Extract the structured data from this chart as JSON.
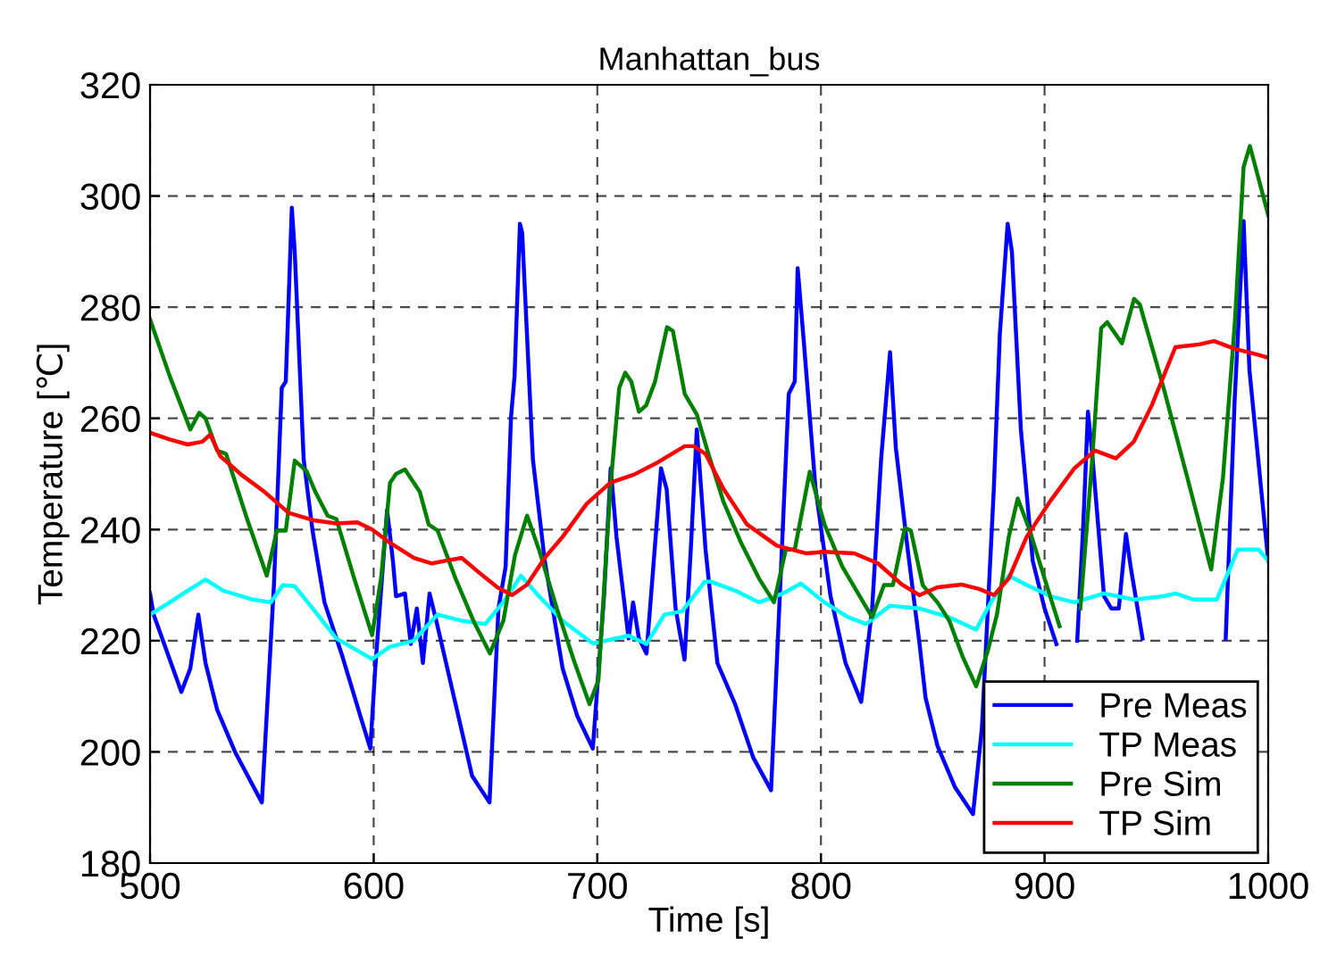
{
  "chart_data": {
    "type": "line",
    "title": "Manhattan_bus",
    "xlabel": "Time [s]",
    "ylabel": "Temperature [℃]",
    "xlim": [
      500,
      1000
    ],
    "ylim": [
      180,
      320
    ],
    "xticks": [
      500,
      600,
      700,
      800,
      900,
      1000
    ],
    "yticks": [
      180,
      200,
      220,
      240,
      260,
      280,
      300,
      320
    ],
    "grid": true,
    "legend": "bottom right",
    "line_style": "solid",
    "marker": "none",
    "series": [
      {
        "name": "Pre Meas",
        "color": "#0000ff",
        "x": [
          500,
          501.6,
          514,
          518,
          521.6,
          524.8,
          530,
          538,
          550,
          555.4,
          558.9,
          560.7,
          563.4,
          564.7,
          568.7,
          572.7,
          578,
          586,
          594,
          598.5,
          600.7,
          606,
          608.6,
          610,
          614,
          616.6,
          619.3,
          622,
          625,
          628,
          636,
          644,
          651.8,
          655.8,
          659,
          661.4,
          663,
          665.4,
          666.4,
          671.2,
          676.5,
          684.5,
          691,
          698,
          703,
          706,
          708.6,
          714,
          716,
          718.6,
          722,
          728.5,
          731,
          735,
          739,
          741.8,
          744.5,
          748.4,
          753.7,
          761.7,
          769.7,
          777.7,
          781.6,
          785.6,
          788.3,
          789.6,
          792.3,
          797.6,
          804.3,
          811,
          818,
          822.9,
          826.9,
          830.9,
          833.5,
          838.8,
          844.1,
          846.8,
          852.1,
          860,
          868,
          872,
          877.3,
          880,
          883.5,
          885.4,
          889.4,
          894.7,
          900,
          905.3,
          910,
          914.6,
          917.3,
          919.4,
          921.3,
          926.6,
          929.8,
          933.2,
          936.4,
          938.5,
          943.8,
          962,
          981,
          985,
          989,
          991.6,
          1000
        ],
        "values": [
          228.5,
          224.7,
          210.8,
          215,
          224.7,
          216,
          207.6,
          200,
          190.9,
          230,
          265.5,
          266.6,
          297.9,
          290,
          252.6,
          239.7,
          226.9,
          217.2,
          206.5,
          200.6,
          215,
          243.5,
          234.4,
          228,
          228.5,
          219.4,
          225.8,
          216,
          228.5,
          223.6,
          209.7,
          195.7,
          190.9,
          225.8,
          233.3,
          260.1,
          267.6,
          295,
          293.4,
          252.6,
          234.4,
          215,
          206.5,
          200.6,
          228,
          251,
          238.6,
          220.4,
          226.9,
          220.4,
          217.7,
          251,
          247.3,
          225.8,
          216.6,
          236.4,
          258,
          236.4,
          216,
          208.5,
          199,
          193.1,
          228,
          264.4,
          266.6,
          287,
          274,
          247.3,
          228,
          216,
          209,
          225.8,
          252.6,
          271.9,
          254.7,
          236.4,
          219.4,
          209.7,
          201.1,
          193.6,
          188.8,
          204.4,
          247.3,
          275.2,
          295,
          290,
          258,
          234.4,
          225.8,
          219.4,
          null,
          220,
          240.8,
          261.2,
          253.6,
          228,
          225.8,
          225.8,
          239.2,
          233.3,
          220.4,
          null,
          220.4,
          263.3,
          295.5,
          268.7,
          234.4
        ]
      },
      {
        "name": "TP Meas",
        "color": "#00ffff",
        "x": [
          500,
          508.8,
          516.8,
          524.8,
          532.8,
          546,
          554,
          559.4,
          564.7,
          572.7,
          583.3,
          599.3,
          607.3,
          617.9,
          628.6,
          639.3,
          649.9,
          657.9,
          665.9,
          673.9,
          684.5,
          698,
          714,
          722,
          730,
          738,
          748,
          751,
          761.7,
          772.3,
          783,
          791,
          801.6,
          812.2,
          820.2,
          830.9,
          844,
          857.4,
          869.4,
          876,
          884,
          892,
          902.7,
          913.3,
          926.6,
          939.9,
          953.2,
          958.5,
          966.5,
          977,
          986.4,
          995.7,
          1000
        ],
        "values": [
          224.7,
          226.9,
          229,
          231,
          229,
          227.4,
          226.9,
          230,
          229.8,
          225.8,
          220.4,
          216.7,
          218.9,
          220,
          224.7,
          223.6,
          223,
          226.9,
          231.7,
          228,
          223.6,
          219.5,
          220.9,
          219.4,
          224.7,
          225.3,
          230.6,
          230.6,
          229,
          226.9,
          228.5,
          230.3,
          226.9,
          224.2,
          223,
          226.3,
          225.8,
          224.2,
          222,
          226.9,
          231.7,
          230,
          228,
          226.9,
          228.5,
          227.4,
          228,
          228.5,
          227.4,
          227.4,
          236.4,
          236.4,
          234.4
        ]
      },
      {
        "name": "Pre Sim",
        "color": "#008000",
        "x": [
          500,
          508.8,
          518,
          522,
          524.8,
          530,
          534,
          543.4,
          552.2,
          556.7,
          560.7,
          564.7,
          570,
          574,
          579.4,
          583.3,
          591.3,
          599.3,
          603.3,
          607.3,
          610,
          614,
          620.6,
          624.6,
          628.6,
          636.6,
          644.6,
          652,
          658,
          663.2,
          668.6,
          673.9,
          681.9,
          689.9,
          696.5,
          700.5,
          705.8,
          709.8,
          712.5,
          715.2,
          718.6,
          721.8,
          725.8,
          731.2,
          733.8,
          739.1,
          744.5,
          749.7,
          756.4,
          764.4,
          772.3,
          779,
          784.3,
          788.3,
          795,
          801.6,
          809.6,
          822.9,
          828.2,
          832.2,
          837.5,
          840.2,
          845.5,
          852.1,
          857.4,
          863.3,
          869.4,
          874.7,
          878.7,
          884,
          888,
          893.4,
          900,
          906.7,
          911,
          916,
          921.3,
          925.3,
          928,
          934.6,
          940,
          942.6,
          953.2,
          963.8,
          974.5,
          979.8,
          985.1,
          989,
          991.8,
          1000
        ],
        "values": [
          277.8,
          267.6,
          258,
          261,
          260,
          254.2,
          253.6,
          241.9,
          231.7,
          239.8,
          239.8,
          252.4,
          250.5,
          246.7,
          242.5,
          241.9,
          231.2,
          221,
          231.2,
          248.4,
          250,
          250.8,
          246.8,
          240.9,
          239.8,
          231.2,
          223.6,
          217.7,
          223.6,
          235.4,
          242.5,
          236.4,
          225.8,
          216,
          208.6,
          212.9,
          247.3,
          265.5,
          268.2,
          266.6,
          261.2,
          262.3,
          266.6,
          276.4,
          275.7,
          264.4,
          260.7,
          253.6,
          245,
          237.5,
          231.2,
          226.9,
          236.4,
          236.4,
          250.4,
          240.9,
          233.3,
          224.2,
          230,
          230,
          240.3,
          239.8,
          230,
          226.9,
          223.6,
          217.2,
          211.8,
          218.3,
          224.7,
          238.7,
          245.6,
          239.8,
          231.2,
          222.6,
          null,
          225.8,
          252.6,
          276.2,
          277.3,
          273.5,
          281.5,
          280.5,
          265.5,
          249.4,
          232.8,
          249.4,
          277.3,
          305.2,
          309,
          296.6
        ]
      },
      {
        "name": "TP Sim",
        "color": "#ff0000",
        "x": [
          500,
          508.8,
          516.8,
          523.4,
          526.9,
          531.4,
          540.7,
          551.4,
          562,
          572.7,
          583.3,
          592.7,
          599.3,
          607.3,
          618,
          626,
          632.6,
          639.3,
          647.3,
          655.3,
          661.9,
          668.6,
          676.5,
          684.5,
          695.2,
          705.8,
          716.5,
          727.1,
          739.1,
          743.1,
          748.4,
          756.4,
          767,
          780.3,
          793.6,
          801.6,
          814.9,
          825.5,
          836.2,
          844.1,
          852.1,
          862.8,
          870.7,
          877.4,
          884,
          892,
          902.7,
          913.3,
          922.6,
          931.9,
          939.9,
          947.9,
          958.5,
          969.1,
          975.8,
          985.1,
          995.7,
          1000
        ],
        "values": [
          257.4,
          256.2,
          255.3,
          255.8,
          257.1,
          253.2,
          249.9,
          246.7,
          243,
          241.7,
          241.1,
          241.3,
          240,
          237.6,
          234.9,
          233.9,
          234.4,
          234.9,
          232.2,
          229.6,
          228.2,
          230.1,
          234.9,
          238.7,
          244.6,
          248.4,
          249.9,
          252.1,
          255,
          255,
          253.6,
          247.3,
          240.9,
          237.1,
          235.7,
          236,
          235.7,
          233.9,
          230.1,
          228.2,
          229.6,
          230.1,
          229.3,
          228.2,
          231.2,
          238.7,
          245.2,
          251,
          254.2,
          252.8,
          255.8,
          262.3,
          272.8,
          273.3,
          273.9,
          272.5,
          271.4,
          270.9
        ]
      }
    ]
  }
}
